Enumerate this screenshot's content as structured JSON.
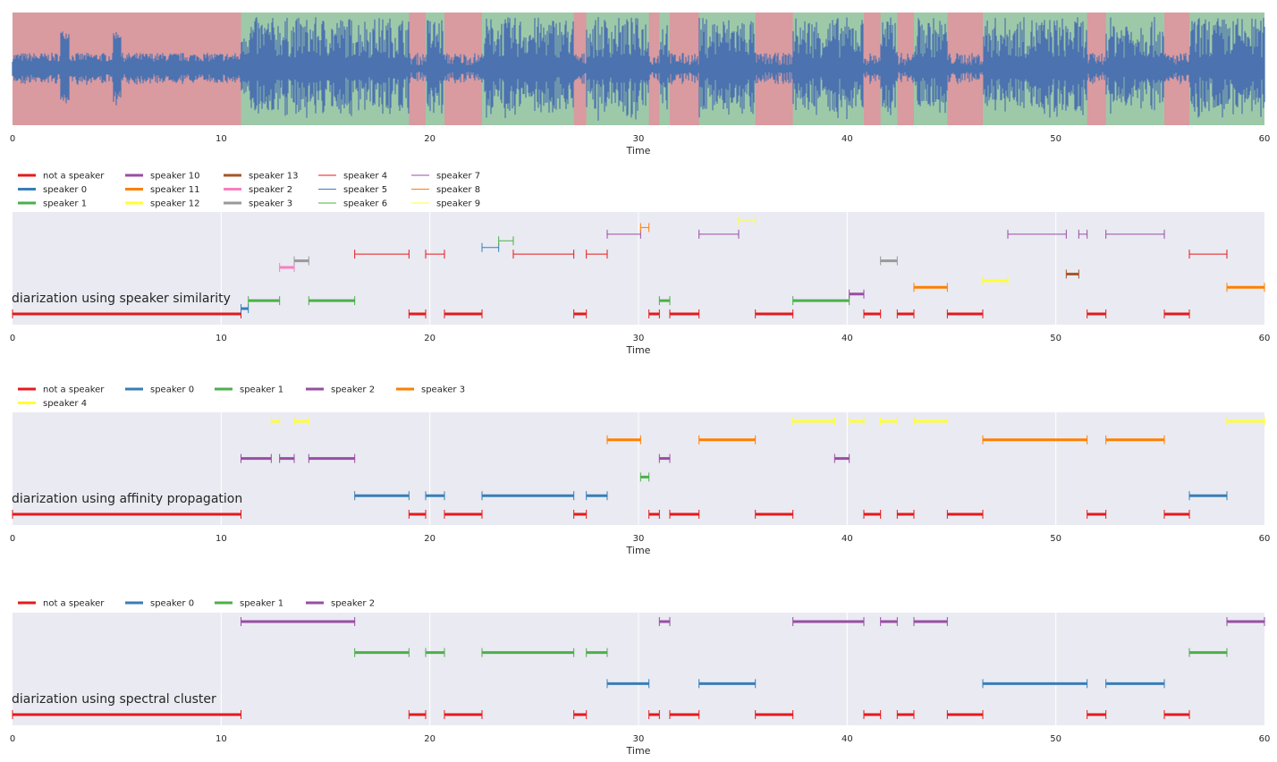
{
  "chart_data": [
    {
      "type": "area",
      "xlabel": "Time",
      "xlim": [
        0,
        60
      ],
      "xticks": [
        "0",
        "10",
        "20",
        "30",
        "40",
        "50",
        "60"
      ],
      "waveform_color": "#4c72b0",
      "region_colors": {
        "not_speech": "#d99aa0",
        "speech": "#9dc9a8"
      },
      "regions_not_speech": [
        [
          0,
          10.95
        ],
        [
          19.0,
          19.8
        ],
        [
          20.7,
          22.5
        ],
        [
          26.9,
          27.5
        ],
        [
          30.5,
          31.0
        ],
        [
          31.5,
          32.9
        ],
        [
          35.6,
          37.4
        ],
        [
          40.8,
          41.6
        ],
        [
          42.4,
          43.2
        ],
        [
          44.8,
          46.5
        ],
        [
          51.5,
          52.4
        ],
        [
          55.2,
          56.4
        ]
      ]
    },
    {
      "type": "timeline",
      "title": "diarization using speaker similarity",
      "xlabel": "Time",
      "xlim": [
        0,
        60
      ],
      "xticks": [
        "0",
        "10",
        "20",
        "30",
        "40",
        "50",
        "60"
      ],
      "legend": [
        {
          "label": "not a speaker",
          "color": "#e41a1c",
          "width": 3
        },
        {
          "label": "speaker 0",
          "color": "#377eb8",
          "width": 3
        },
        {
          "label": "speaker 1",
          "color": "#4daf4a",
          "width": 3
        },
        {
          "label": "speaker 10",
          "color": "#984ea3",
          "width": 3
        },
        {
          "label": "speaker 11",
          "color": "#ff7f00",
          "width": 3
        },
        {
          "label": "speaker 12",
          "color": "#ffff33",
          "width": 3
        },
        {
          "label": "speaker 13",
          "color": "#a65628",
          "width": 3
        },
        {
          "label": "speaker 2",
          "color": "#f781bf",
          "width": 3
        },
        {
          "label": "speaker 3",
          "color": "#999999",
          "width": 3
        },
        {
          "label": "speaker 4",
          "color": "#e41a1c",
          "width": 1
        },
        {
          "label": "speaker 5",
          "color": "#377eb8",
          "width": 1
        },
        {
          "label": "speaker 6",
          "color": "#4daf4a",
          "width": 1
        },
        {
          "label": "speaker 7",
          "color": "#984ea3",
          "width": 1
        },
        {
          "label": "speaker 8",
          "color": "#ff7f00",
          "width": 1
        },
        {
          "label": "speaker 9",
          "color": "#ffff33",
          "width": 1
        }
      ],
      "segments": [
        {
          "speaker": "not a speaker",
          "level": 0,
          "s": 0,
          "e": 10.95,
          "w": 3
        },
        {
          "speaker": "not a speaker",
          "level": 0,
          "s": 19.0,
          "e": 19.8,
          "w": 3
        },
        {
          "speaker": "not a speaker",
          "level": 0,
          "s": 20.7,
          "e": 22.5,
          "w": 3
        },
        {
          "speaker": "not a speaker",
          "level": 0,
          "s": 26.9,
          "e": 27.5,
          "w": 3
        },
        {
          "speaker": "not a speaker",
          "level": 0,
          "s": 30.5,
          "e": 31.0,
          "w": 3
        },
        {
          "speaker": "not a speaker",
          "level": 0,
          "s": 31.5,
          "e": 32.9,
          "w": 3
        },
        {
          "speaker": "not a speaker",
          "level": 0,
          "s": 35.6,
          "e": 37.4,
          "w": 3
        },
        {
          "speaker": "not a speaker",
          "level": 0,
          "s": 40.8,
          "e": 41.6,
          "w": 3
        },
        {
          "speaker": "not a speaker",
          "level": 0,
          "s": 42.4,
          "e": 43.2,
          "w": 3
        },
        {
          "speaker": "not a speaker",
          "level": 0,
          "s": 44.8,
          "e": 46.5,
          "w": 3
        },
        {
          "speaker": "not a speaker",
          "level": 0,
          "s": 51.5,
          "e": 52.4,
          "w": 3
        },
        {
          "speaker": "not a speaker",
          "level": 0,
          "s": 55.2,
          "e": 56.4,
          "w": 3
        },
        {
          "speaker": "speaker 0",
          "level": 0.4,
          "s": 10.95,
          "e": 11.3,
          "w": 3
        },
        {
          "speaker": "speaker 1",
          "level": 1,
          "s": 11.3,
          "e": 12.8,
          "w": 3
        },
        {
          "speaker": "speaker 1",
          "level": 1,
          "s": 14.2,
          "e": 16.4,
          "w": 3
        },
        {
          "speaker": "speaker 1",
          "level": 1,
          "s": 31.0,
          "e": 31.5,
          "w": 3
        },
        {
          "speaker": "speaker 1",
          "level": 1,
          "s": 37.4,
          "e": 40.1,
          "w": 3
        },
        {
          "speaker": "speaker 10",
          "level": 1.5,
          "s": 40.1,
          "e": 40.8,
          "w": 3
        },
        {
          "speaker": "speaker 11",
          "level": 2,
          "s": 43.2,
          "e": 44.8,
          "w": 3
        },
        {
          "speaker": "speaker 11",
          "level": 2,
          "s": 58.2,
          "e": 60,
          "w": 3
        },
        {
          "speaker": "speaker 12",
          "level": 2.5,
          "s": 46.5,
          "e": 47.7,
          "w": 3
        },
        {
          "speaker": "speaker 13",
          "level": 3,
          "s": 50.5,
          "e": 51.1,
          "w": 3
        },
        {
          "speaker": "speaker 2",
          "level": 3.5,
          "s": 12.8,
          "e": 13.5,
          "w": 3
        },
        {
          "speaker": "speaker 3",
          "level": 4,
          "s": 13.5,
          "e": 14.2,
          "w": 3
        },
        {
          "speaker": "speaker 3",
          "level": 4,
          "s": 41.6,
          "e": 42.4,
          "w": 3
        },
        {
          "speaker": "speaker 4",
          "level": 4.5,
          "s": 16.4,
          "e": 19.0,
          "w": 1
        },
        {
          "speaker": "speaker 4",
          "level": 4.5,
          "s": 19.8,
          "e": 20.7,
          "w": 1
        },
        {
          "speaker": "speaker 4",
          "level": 4.5,
          "s": 24.0,
          "e": 26.9,
          "w": 1
        },
        {
          "speaker": "speaker 4",
          "level": 4.5,
          "s": 27.5,
          "e": 28.5,
          "w": 1
        },
        {
          "speaker": "speaker 4",
          "level": 4.5,
          "s": 56.4,
          "e": 58.2,
          "w": 1
        },
        {
          "speaker": "speaker 5",
          "level": 5,
          "s": 22.5,
          "e": 23.3,
          "w": 1
        },
        {
          "speaker": "speaker 6",
          "level": 5.5,
          "s": 23.3,
          "e": 24.0,
          "w": 1
        },
        {
          "speaker": "speaker 7",
          "level": 6,
          "s": 28.5,
          "e": 30.1,
          "w": 1
        },
        {
          "speaker": "speaker 7",
          "level": 6,
          "s": 32.9,
          "e": 34.8,
          "w": 1
        },
        {
          "speaker": "speaker 7",
          "level": 6,
          "s": 47.7,
          "e": 50.5,
          "w": 1
        },
        {
          "speaker": "speaker 7",
          "level": 6,
          "s": 51.1,
          "e": 51.5,
          "w": 1
        },
        {
          "speaker": "speaker 7",
          "level": 6,
          "s": 52.4,
          "e": 55.2,
          "w": 1
        },
        {
          "speaker": "speaker 8",
          "level": 6.5,
          "s": 30.1,
          "e": 30.5,
          "w": 1
        },
        {
          "speaker": "speaker 9",
          "level": 7,
          "s": 34.8,
          "e": 35.6,
          "w": 1
        }
      ]
    },
    {
      "type": "timeline",
      "title": "diarization using affinity propagation",
      "xlabel": "Time",
      "xlim": [
        0,
        60
      ],
      "xticks": [
        "0",
        "10",
        "20",
        "30",
        "40",
        "50",
        "60"
      ],
      "legend": [
        {
          "label": "not a speaker",
          "color": "#e41a1c",
          "width": 3
        },
        {
          "label": "speaker 0",
          "color": "#377eb8",
          "width": 3
        },
        {
          "label": "speaker 1",
          "color": "#4daf4a",
          "width": 3
        },
        {
          "label": "speaker 2",
          "color": "#984ea3",
          "width": 3
        },
        {
          "label": "speaker 3",
          "color": "#ff7f00",
          "width": 3
        },
        {
          "label": "speaker 4",
          "color": "#ffff33",
          "width": 3
        }
      ],
      "segments": [
        {
          "speaker": "not a speaker",
          "level": 0,
          "s": 0,
          "e": 10.95,
          "w": 3
        },
        {
          "speaker": "not a speaker",
          "level": 0,
          "s": 19.0,
          "e": 19.8,
          "w": 3
        },
        {
          "speaker": "not a speaker",
          "level": 0,
          "s": 20.7,
          "e": 22.5,
          "w": 3
        },
        {
          "speaker": "not a speaker",
          "level": 0,
          "s": 26.9,
          "e": 27.5,
          "w": 3
        },
        {
          "speaker": "not a speaker",
          "level": 0,
          "s": 30.5,
          "e": 31.0,
          "w": 3
        },
        {
          "speaker": "not a speaker",
          "level": 0,
          "s": 31.5,
          "e": 32.9,
          "w": 3
        },
        {
          "speaker": "not a speaker",
          "level": 0,
          "s": 35.6,
          "e": 37.4,
          "w": 3
        },
        {
          "speaker": "not a speaker",
          "level": 0,
          "s": 40.8,
          "e": 41.6,
          "w": 3
        },
        {
          "speaker": "not a speaker",
          "level": 0,
          "s": 42.4,
          "e": 43.2,
          "w": 3
        },
        {
          "speaker": "not a speaker",
          "level": 0,
          "s": 44.8,
          "e": 46.5,
          "w": 3
        },
        {
          "speaker": "not a speaker",
          "level": 0,
          "s": 51.5,
          "e": 52.4,
          "w": 3
        },
        {
          "speaker": "not a speaker",
          "level": 0,
          "s": 55.2,
          "e": 56.4,
          "w": 3
        },
        {
          "speaker": "speaker 0",
          "level": 1,
          "s": 16.4,
          "e": 19.0,
          "w": 3
        },
        {
          "speaker": "speaker 0",
          "level": 1,
          "s": 19.8,
          "e": 20.7,
          "w": 3
        },
        {
          "speaker": "speaker 0",
          "level": 1,
          "s": 22.5,
          "e": 26.9,
          "w": 3
        },
        {
          "speaker": "speaker 0",
          "level": 1,
          "s": 27.5,
          "e": 28.5,
          "w": 3
        },
        {
          "speaker": "speaker 0",
          "level": 1,
          "s": 56.4,
          "e": 58.2,
          "w": 3
        },
        {
          "speaker": "speaker 1",
          "level": 2,
          "s": 30.1,
          "e": 30.5,
          "w": 3
        },
        {
          "speaker": "speaker 2",
          "level": 3,
          "s": 10.95,
          "e": 12.4,
          "w": 3
        },
        {
          "speaker": "speaker 2",
          "level": 3,
          "s": 12.8,
          "e": 13.5,
          "w": 3
        },
        {
          "speaker": "speaker 2",
          "level": 3,
          "s": 14.2,
          "e": 16.4,
          "w": 3
        },
        {
          "speaker": "speaker 2",
          "level": 3,
          "s": 31.0,
          "e": 31.5,
          "w": 3
        },
        {
          "speaker": "speaker 2",
          "level": 3,
          "s": 39.4,
          "e": 40.1,
          "w": 3
        },
        {
          "speaker": "speaker 3",
          "level": 4,
          "s": 28.5,
          "e": 30.1,
          "w": 3
        },
        {
          "speaker": "speaker 3",
          "level": 4,
          "s": 32.9,
          "e": 35.6,
          "w": 3
        },
        {
          "speaker": "speaker 3",
          "level": 4,
          "s": 46.5,
          "e": 51.5,
          "w": 3
        },
        {
          "speaker": "speaker 3",
          "level": 4,
          "s": 52.4,
          "e": 55.2,
          "w": 3
        },
        {
          "speaker": "speaker 4",
          "level": 5,
          "s": 12.4,
          "e": 12.8,
          "w": 3
        },
        {
          "speaker": "speaker 4",
          "level": 5,
          "s": 13.5,
          "e": 14.2,
          "w": 3
        },
        {
          "speaker": "speaker 4",
          "level": 5,
          "s": 37.4,
          "e": 39.4,
          "w": 3
        },
        {
          "speaker": "speaker 4",
          "level": 5,
          "s": 40.1,
          "e": 40.8,
          "w": 3
        },
        {
          "speaker": "speaker 4",
          "level": 5,
          "s": 41.6,
          "e": 42.4,
          "w": 3
        },
        {
          "speaker": "speaker 4",
          "level": 5,
          "s": 43.2,
          "e": 44.8,
          "w": 3
        },
        {
          "speaker": "speaker 4",
          "level": 5,
          "s": 58.2,
          "e": 60,
          "w": 3
        }
      ]
    },
    {
      "type": "timeline",
      "title": "diarization using spectral cluster",
      "xlabel": "Time",
      "xlim": [
        0,
        60
      ],
      "xticks": [
        "0",
        "10",
        "20",
        "30",
        "40",
        "50",
        "60"
      ],
      "legend": [
        {
          "label": "not a speaker",
          "color": "#e41a1c",
          "width": 3
        },
        {
          "label": "speaker 0",
          "color": "#377eb8",
          "width": 3
        },
        {
          "label": "speaker 1",
          "color": "#4daf4a",
          "width": 3
        },
        {
          "label": "speaker 2",
          "color": "#984ea3",
          "width": 3
        }
      ],
      "segments": [
        {
          "speaker": "not a speaker",
          "level": 0,
          "s": 0,
          "e": 10.95,
          "w": 3
        },
        {
          "speaker": "not a speaker",
          "level": 0,
          "s": 19.0,
          "e": 19.8,
          "w": 3
        },
        {
          "speaker": "not a speaker",
          "level": 0,
          "s": 20.7,
          "e": 22.5,
          "w": 3
        },
        {
          "speaker": "not a speaker",
          "level": 0,
          "s": 26.9,
          "e": 27.5,
          "w": 3
        },
        {
          "speaker": "not a speaker",
          "level": 0,
          "s": 30.5,
          "e": 31.0,
          "w": 3
        },
        {
          "speaker": "not a speaker",
          "level": 0,
          "s": 31.5,
          "e": 32.9,
          "w": 3
        },
        {
          "speaker": "not a speaker",
          "level": 0,
          "s": 35.6,
          "e": 37.4,
          "w": 3
        },
        {
          "speaker": "not a speaker",
          "level": 0,
          "s": 40.8,
          "e": 41.6,
          "w": 3
        },
        {
          "speaker": "not a speaker",
          "level": 0,
          "s": 42.4,
          "e": 43.2,
          "w": 3
        },
        {
          "speaker": "not a speaker",
          "level": 0,
          "s": 44.8,
          "e": 46.5,
          "w": 3
        },
        {
          "speaker": "not a speaker",
          "level": 0,
          "s": 51.5,
          "e": 52.4,
          "w": 3
        },
        {
          "speaker": "not a speaker",
          "level": 0,
          "s": 55.2,
          "e": 56.4,
          "w": 3
        },
        {
          "speaker": "speaker 0",
          "level": 1,
          "s": 28.5,
          "e": 30.5,
          "w": 3
        },
        {
          "speaker": "speaker 0",
          "level": 1,
          "s": 32.9,
          "e": 35.6,
          "w": 3
        },
        {
          "speaker": "speaker 0",
          "level": 1,
          "s": 46.5,
          "e": 51.5,
          "w": 3
        },
        {
          "speaker": "speaker 0",
          "level": 1,
          "s": 52.4,
          "e": 55.2,
          "w": 3
        },
        {
          "speaker": "speaker 1",
          "level": 2,
          "s": 16.4,
          "e": 19.0,
          "w": 3
        },
        {
          "speaker": "speaker 1",
          "level": 2,
          "s": 19.8,
          "e": 20.7,
          "w": 3
        },
        {
          "speaker": "speaker 1",
          "level": 2,
          "s": 22.5,
          "e": 26.9,
          "w": 3
        },
        {
          "speaker": "speaker 1",
          "level": 2,
          "s": 27.5,
          "e": 28.5,
          "w": 3
        },
        {
          "speaker": "speaker 1",
          "level": 2,
          "s": 56.4,
          "e": 58.2,
          "w": 3
        },
        {
          "speaker": "speaker 2",
          "level": 3,
          "s": 10.95,
          "e": 16.4,
          "w": 3
        },
        {
          "speaker": "speaker 2",
          "level": 3,
          "s": 31.0,
          "e": 31.5,
          "w": 3
        },
        {
          "speaker": "speaker 2",
          "level": 3,
          "s": 37.4,
          "e": 40.8,
          "w": 3
        },
        {
          "speaker": "speaker 2",
          "level": 3,
          "s": 41.6,
          "e": 42.4,
          "w": 3
        },
        {
          "speaker": "speaker 2",
          "level": 3,
          "s": 43.2,
          "e": 44.8,
          "w": 3
        },
        {
          "speaker": "speaker 2",
          "level": 3,
          "s": 58.2,
          "e": 60,
          "w": 3
        }
      ]
    }
  ]
}
